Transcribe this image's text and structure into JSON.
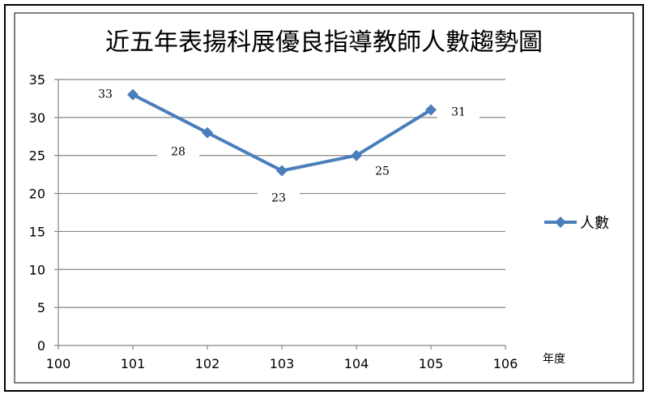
{
  "chart_data": {
    "type": "line",
    "title": "近五年表揚科展優良指導教師人數趨勢圖",
    "xlabel": "年度",
    "ylabel": "",
    "x": [
      101,
      102,
      103,
      104,
      105
    ],
    "series": [
      {
        "name": "人數",
        "values": [
          33,
          28,
          23,
          25,
          31
        ]
      }
    ],
    "xlim": [
      100,
      106
    ],
    "ylim": [
      0,
      35
    ],
    "x_ticks": [
      "100",
      "101",
      "102",
      "103",
      "104",
      "105",
      "106"
    ],
    "y_ticks": [
      "0",
      "5",
      "10",
      "15",
      "20",
      "25",
      "30",
      "35"
    ],
    "data_labels": [
      "33",
      "28",
      "23",
      "25",
      "31"
    ],
    "grid": "horizontal",
    "legend": "right",
    "colors": {
      "line": "#4a7ebb",
      "grid": "#868686",
      "axis": "#868686",
      "border": "#000000"
    }
  }
}
